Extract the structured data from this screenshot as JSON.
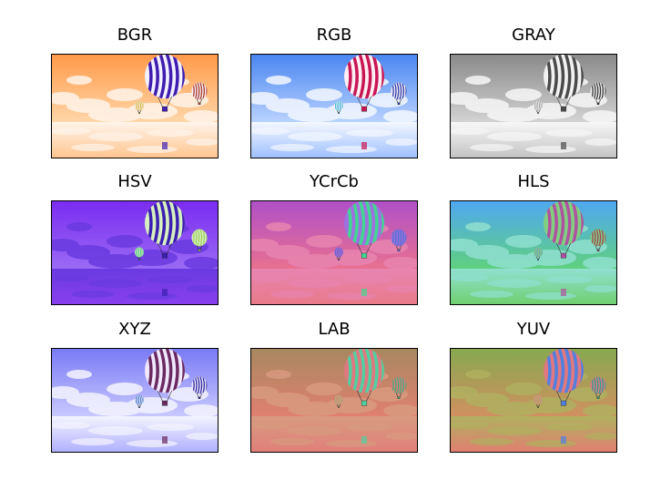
{
  "panels": [
    {
      "title": "BGR",
      "sky_top": "#ff9a4a",
      "sky_bottom": "#ffd6a8",
      "cloud": "#fff4ea",
      "balloon_a": "#3e1db0",
      "balloon_b": "#f3f0ff",
      "small": "#b0402a",
      "tiny": "#d9b020",
      "mirror": "#ffc58f"
    },
    {
      "title": "RGB",
      "sky_top": "#4a86f0",
      "sky_bottom": "#b9d2ff",
      "cloud": "#f4f8ff",
      "balloon_a": "#c81655",
      "balloon_b": "#fff0f4",
      "small": "#2a40b0",
      "tiny": "#20b0d9",
      "mirror": "#9fc0ff"
    },
    {
      "title": "GRAY",
      "sky_top": "#8a8a8a",
      "sky_bottom": "#d2d2d2",
      "cloud": "#f7f7f7",
      "balloon_a": "#4a4a4a",
      "balloon_b": "#f2f2f2",
      "small": "#3a3a3a",
      "tiny": "#9a9a9a",
      "mirror": "#c4c4c4"
    },
    {
      "title": "HSV",
      "sky_top": "#7a2cf0",
      "sky_bottom": "#9a6af5",
      "cloud": "#6a3ae0",
      "balloon_a": "#3b1fb0",
      "balloon_b": "#d8f0c0",
      "small": "#9fd060",
      "tiny": "#40c080",
      "mirror": "#8840ee"
    },
    {
      "title": "YCrCb",
      "sky_top": "#b050c8",
      "sky_bottom": "#e87090",
      "cloud": "#e884b0",
      "balloon_a": "#40d890",
      "balloon_b": "#a070e0",
      "small": "#5070d0",
      "tiny": "#7060c0",
      "mirror": "#e87a8a"
    },
    {
      "title": "HLS",
      "sky_top": "#50a8f0",
      "sky_bottom": "#60d080",
      "cloud": "#90e0d0",
      "balloon_a": "#b050a0",
      "balloon_b": "#80d080",
      "small": "#a04860",
      "tiny": "#70a0c0",
      "mirror": "#70d070"
    },
    {
      "title": "XYZ",
      "sky_top": "#7a7af5",
      "sky_bottom": "#c8c8ff",
      "cloud": "#f4f4ff",
      "balloon_a": "#6a2a60",
      "balloon_b": "#f0e8ff",
      "small": "#3030a0",
      "tiny": "#3070c0",
      "mirror": "#b0b0ff"
    },
    {
      "title": "LAB",
      "sky_top": "#a88860",
      "sky_bottom": "#e08070",
      "cloud": "#d89a80",
      "balloon_a": "#50d0a0",
      "balloon_b": "#e07880",
      "small": "#40b070",
      "tiny": "#a0c070",
      "mirror": "#e0807a"
    },
    {
      "title": "YUV",
      "sky_top": "#88a850",
      "sky_bottom": "#d09060",
      "cloud": "#b0b060",
      "balloon_a": "#5080e0",
      "balloon_b": "#e07880",
      "small": "#30a090",
      "tiny": "#a0c060",
      "mirror": "#e08070"
    }
  ]
}
